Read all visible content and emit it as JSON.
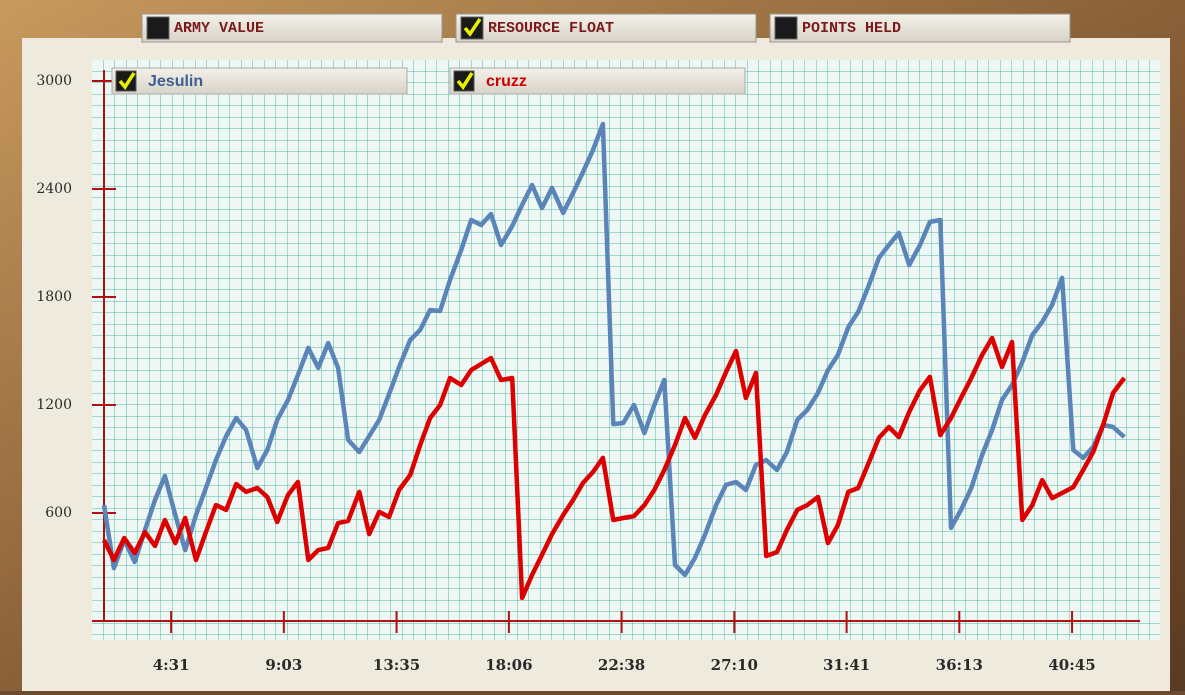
{
  "tabs": [
    {
      "label": "ARMY VALUE",
      "checked": false
    },
    {
      "label": "RESOURCE FLOAT",
      "checked": true
    },
    {
      "label": "POINTS HELD",
      "checked": false
    }
  ],
  "chart_data": {
    "type": "line",
    "xlim": [
      109,
      2609
    ],
    "xticks": [
      {
        "value": 271,
        "label": "4:31"
      },
      {
        "value": 543,
        "label": "9:03"
      },
      {
        "value": 815,
        "label": "13:35"
      },
      {
        "value": 1086,
        "label": "18:06"
      },
      {
        "value": 1358,
        "label": "22:38"
      },
      {
        "value": 1630,
        "label": "27:10"
      },
      {
        "value": 1901,
        "label": "31:41"
      },
      {
        "value": 2173,
        "label": "36:13"
      },
      {
        "value": 2445,
        "label": "40:45"
      }
    ],
    "ylim": [
      0,
      3000
    ],
    "yticks": [
      600,
      1200,
      1800,
      2400,
      3000
    ],
    "grid": true,
    "series": [
      {
        "name": "Jesulin",
        "color": "#5b84b8",
        "x": [
          109,
          133,
          158,
          183,
          208,
          232,
          256,
          281,
          305,
          331,
          355,
          379,
          404,
          428,
          452,
          479,
          503,
          527,
          553,
          577,
          602,
          626,
          650,
          674,
          698,
          725,
          749,
          773,
          797,
          821,
          848,
          872,
          896,
          920,
          944,
          971,
          995,
          1019,
          1043,
          1067,
          1094,
          1118,
          1142,
          1166,
          1190,
          1217,
          1241,
          1265,
          1289,
          1313,
          1338,
          1362,
          1388,
          1413,
          1437,
          1461,
          1487,
          1511,
          1535,
          1559,
          1586,
          1610,
          1634,
          1658,
          1682,
          1707,
          1733,
          1757,
          1782,
          1806,
          1832,
          1856,
          1880,
          1905,
          1929,
          1955,
          1979,
          2003,
          2027,
          2052,
          2078,
          2102,
          2127,
          2153,
          2177,
          2202,
          2228,
          2252,
          2276,
          2300,
          2325,
          2349,
          2373,
          2397,
          2421,
          2448,
          2472,
          2496,
          2520,
          2544,
          2571
        ],
        "values": [
          644,
          294,
          450,
          328,
          506,
          672,
          806,
          589,
          394,
          589,
          739,
          894,
          1028,
          1128,
          1061,
          850,
          950,
          1117,
          1228,
          1367,
          1517,
          1406,
          1544,
          1406,
          1006,
          939,
          1028,
          1117,
          1261,
          1411,
          1561,
          1617,
          1728,
          1722,
          1894,
          2061,
          2228,
          2200,
          2261,
          2089,
          2194,
          2311,
          2422,
          2294,
          2406,
          2267,
          2378,
          2494,
          2617,
          2761,
          1094,
          1100,
          1200,
          1044,
          1200,
          1339,
          311,
          256,
          350,
          478,
          644,
          756,
          772,
          728,
          867,
          894,
          839,
          939,
          1117,
          1172,
          1267,
          1394,
          1478,
          1633,
          1717,
          1867,
          2017,
          2089,
          2156,
          1978,
          2089,
          2217,
          2228,
          517,
          617,
          739,
          922,
          1061,
          1228,
          1311,
          1439,
          1589,
          1661,
          1756,
          1906,
          950,
          906,
          967,
          1089,
          1078,
          1022
        ]
      },
      {
        "name": "cruzz",
        "color": "#dd0000",
        "x": [
          109,
          133,
          158,
          183,
          208,
          232,
          256,
          281,
          305,
          331,
          355,
          379,
          404,
          428,
          452,
          479,
          503,
          527,
          553,
          577,
          602,
          626,
          650,
          674,
          698,
          725,
          749,
          773,
          797,
          821,
          848,
          872,
          896,
          920,
          944,
          971,
          995,
          1019,
          1043,
          1067,
          1094,
          1118,
          1142,
          1166,
          1190,
          1217,
          1241,
          1265,
          1289,
          1313,
          1338,
          1362,
          1388,
          1413,
          1437,
          1461,
          1487,
          1511,
          1535,
          1559,
          1586,
          1610,
          1634,
          1658,
          1682,
          1707,
          1733,
          1757,
          1782,
          1806,
          1832,
          1856,
          1880,
          1905,
          1929,
          1955,
          1979,
          2003,
          2027,
          2052,
          2078,
          2102,
          2127,
          2153,
          2177,
          2202,
          2228,
          2252,
          2276,
          2300,
          2325,
          2349,
          2373,
          2397,
          2421,
          2448,
          2472,
          2496,
          2520,
          2544,
          2571
        ],
        "values": [
          450,
          339,
          461,
          378,
          494,
          417,
          561,
          433,
          572,
          339,
          494,
          644,
          617,
          761,
          717,
          739,
          689,
          550,
          700,
          772,
          339,
          394,
          406,
          544,
          556,
          717,
          483,
          606,
          578,
          728,
          811,
          978,
          1128,
          1200,
          1350,
          1311,
          1394,
          1428,
          1461,
          1339,
          1350,
          128,
          256,
          367,
          483,
          589,
          672,
          767,
          828,
          906,
          561,
          572,
          583,
          644,
          728,
          839,
          978,
          1128,
          1017,
          1144,
          1256,
          1383,
          1500,
          1239,
          1378,
          361,
          383,
          506,
          617,
          644,
          689,
          433,
          533,
          717,
          739,
          883,
          1017,
          1078,
          1022,
          1161,
          1283,
          1356,
          1033,
          1128,
          1239,
          1350,
          1478,
          1572,
          1411,
          1550,
          561,
          644,
          783,
          683,
          711,
          744,
          839,
          939,
          1089,
          1267,
          1350
        ]
      }
    ]
  }
}
